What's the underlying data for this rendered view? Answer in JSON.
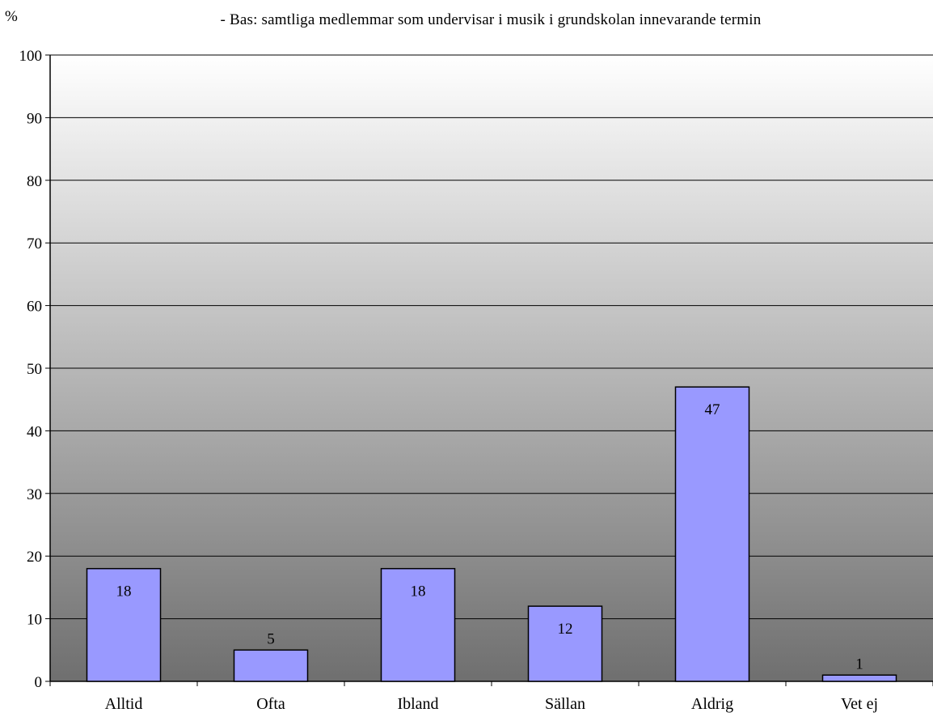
{
  "chart_data": {
    "type": "bar",
    "title": "",
    "subtitle": "- Bas: samtliga medlemmar som undervisar i musik i grundskolan innevarande termin",
    "xlabel": "",
    "ylabel": "%",
    "ylim": [
      0,
      100
    ],
    "yticks": [
      0,
      10,
      20,
      30,
      40,
      50,
      60,
      70,
      80,
      90,
      100
    ],
    "categories": [
      "Alltid",
      "Ofta",
      "Ibland",
      "Sällan",
      "Aldrig",
      "Vet ej"
    ],
    "values": [
      18,
      5,
      18,
      12,
      47,
      1
    ],
    "data_labels": [
      "18",
      "5",
      "18",
      "12",
      "47",
      "1"
    ],
    "grid": true,
    "legend": "none",
    "bar_color": "#9999ff",
    "background_gradient": [
      "#ffffff",
      "#6f6f6f"
    ]
  }
}
